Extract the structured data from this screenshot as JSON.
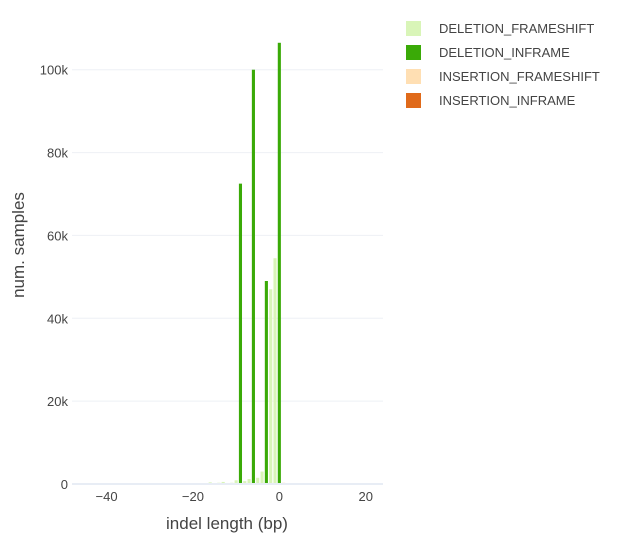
{
  "chart_data": {
    "type": "bar",
    "xlabel": "indel length (bp)",
    "ylabel": "num. samples",
    "xlim": [
      -48,
      24
    ],
    "ylim": [
      0,
      112000
    ],
    "x_ticks": [
      {
        "value": -40,
        "label": "−40"
      },
      {
        "value": -20,
        "label": "−20"
      },
      {
        "value": 0,
        "label": "0"
      },
      {
        "value": 20,
        "label": "20"
      }
    ],
    "y_ticks": [
      {
        "value": 0,
        "label": "0"
      },
      {
        "value": 20000,
        "label": "20k"
      },
      {
        "value": 40000,
        "label": "40k"
      },
      {
        "value": 60000,
        "label": "60k"
      },
      {
        "value": 80000,
        "label": "80k"
      },
      {
        "value": 100000,
        "label": "100k"
      }
    ],
    "grid": true,
    "legend_position": "top-right",
    "series": [
      {
        "name": "DELETION_FRAMESHIFT",
        "color": "#d9f5b8",
        "x": [
          -16,
          -14,
          -13,
          -11,
          -10,
          -8,
          -7,
          -5,
          -4,
          -2,
          -1
        ],
        "y": [
          400,
          300,
          500,
          300,
          900,
          700,
          1200,
          1500,
          3000,
          47000,
          54500
        ]
      },
      {
        "name": "DELETION_INFRAME",
        "color": "#3aaa07",
        "x": [
          -9,
          -6,
          -3,
          0
        ],
        "y": [
          72500,
          100000,
          49000,
          106500
        ]
      },
      {
        "name": "INSERTION_FRAMESHIFT",
        "color": "#ffdfb3",
        "x": [
          1,
          2
        ],
        "y": [
          300,
          200
        ]
      },
      {
        "name": "INSERTION_INFRAME",
        "color": "#e06a1a",
        "x": [
          3
        ],
        "y": [
          100
        ]
      }
    ]
  }
}
